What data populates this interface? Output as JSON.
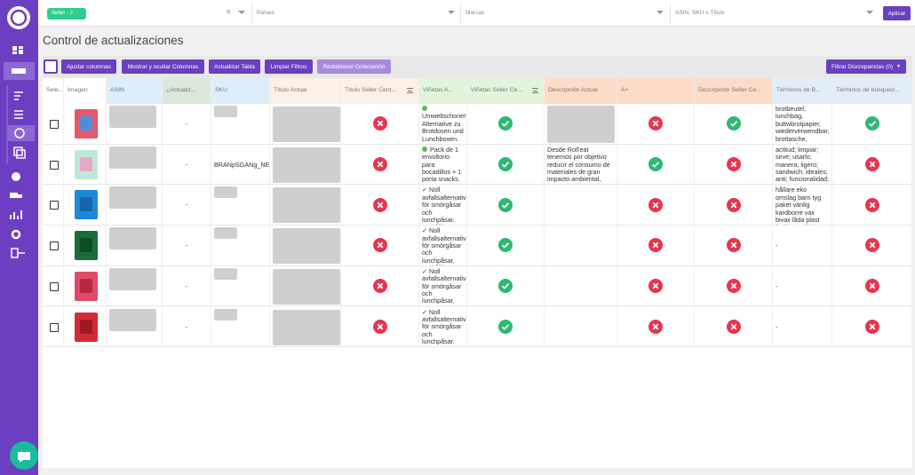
{
  "topbar": {
    "seller_chip": "Seller - 2",
    "countries": "Países",
    "brands": "Marcas",
    "search": "ASIN, SKU o Título",
    "apply": "Aplicar"
  },
  "page_title": "Control de actualizaciones",
  "toolbar": {
    "buttons": [
      "Ajustar columnas",
      "Mostrar y ocultar Columnas",
      "Actualizar Tabla",
      "Limpiar Filtros",
      "Restablecer Ordenación"
    ],
    "filter": "Filtrar Discrepancias (0)"
  },
  "table": {
    "columns": [
      "Sele...",
      "Imagen",
      "ASIN",
      "¿Actualiz...",
      "SKU",
      "Título Actual",
      "Título Seller Cent...",
      "Viñetas A...",
      "Viñetas Seller Ce...",
      "Descripción Actual",
      "A+",
      "Descripción Seller Ce...",
      "Términos de B...",
      "Términos de búsqued..."
    ],
    "rows": [
      {
        "updated": "-",
        "title_seller_ok": false,
        "bullets": "Umweltschonende Alternative zu Brotdosen und Lunchboxen.",
        "bullets_seller_ok": true,
        "aplus_ok": false,
        "description_seller_ok": true,
        "search_terms": "brotbeutel, lunchbag, buttwbrotpapier, wiederverwendbar, brottasche, pausenbrot",
        "search_terms_seller_ok": true
      },
      {
        "updated": "-",
        "sku": "BRANpSGANg_NEW",
        "title_seller_ok": false,
        "bullets": "Pack de 1 envoltorio para bocadillos + 1 porta snacks. Contiene un Boc'n'Roll",
        "bullets_seller_ok": true,
        "description": "Desde Roll'eat tenemos por objetivo reducir el consumo de materiales de gran impacto ambiental, como el papel de aluminio",
        "aplus_ok": true,
        "description_seller_ok": false,
        "search_terms": "actitud; limpiar; sirve; usarlo; manera; ligero; sandwich; ideales; anti; funcionalidad; sale; envuelve",
        "search_terms_seller_ok": false
      },
      {
        "updated": "-",
        "title_seller_ok": false,
        "bullets": "✓ Noll avfallsalternativ för smörgåsar och lunchpåsar. En hållbar",
        "bullets_seller_ok": true,
        "aplus_ok": false,
        "description_seller_ok": false,
        "search_terms": "hållare eko omslag barn tyg paket vänlig kardborre vax bivax låda plast fettbeständig stora ekologiska",
        "search_terms_seller_ok": false
      },
      {
        "updated": "-",
        "title_seller_ok": false,
        "bullets": "✓ Noll avfallsalternativ för smörgåsar och lunchpåsar. En hållbar",
        "bullets_seller_ok": true,
        "aplus_ok": false,
        "description_seller_ok": false,
        "search_terms": "-",
        "search_terms_seller_ok": false
      },
      {
        "updated": "-",
        "title_seller_ok": false,
        "bullets": "✓ Noll avfallsalternativ för smörgåsar och lunchpåsar. En hållbar",
        "bullets_seller_ok": true,
        "aplus_ok": false,
        "description_seller_ok": false,
        "search_terms": "-",
        "search_terms_seller_ok": false
      },
      {
        "updated": "-",
        "title_seller_ok": false,
        "bullets": "✓ Noll avfallsalternativ för smörgåsar och lunchpåsar. En hållbar",
        "bullets_seller_ok": true,
        "aplus_ok": false,
        "description_seller_ok": false,
        "search_terms": "-",
        "search_terms_seller_ok": false
      }
    ]
  }
}
